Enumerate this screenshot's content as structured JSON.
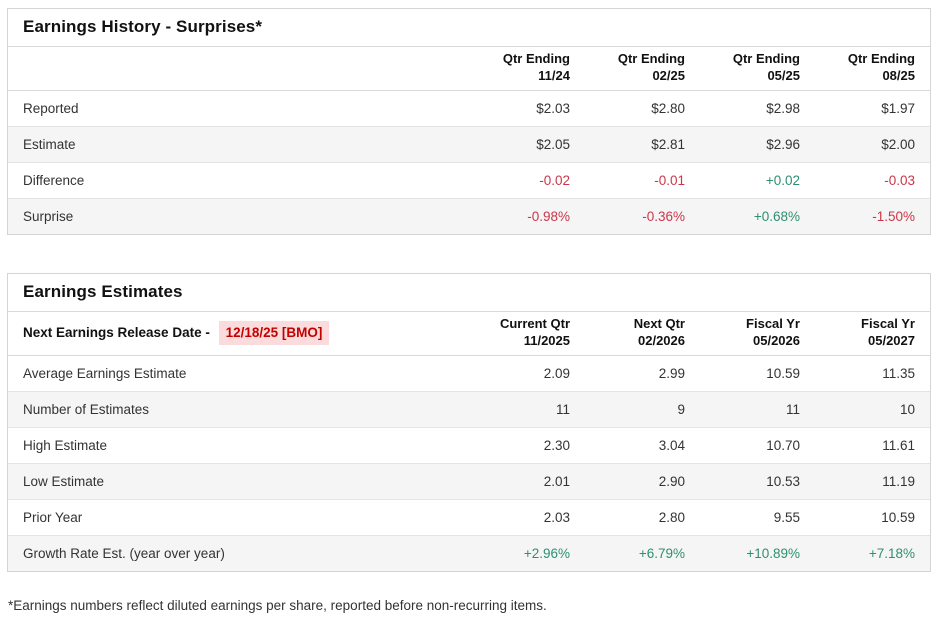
{
  "colors": {
    "negative": "#cb3649",
    "positive": "#2e8f72",
    "release_date_text": "#c40000",
    "release_date_bg": "#fbdbdb"
  },
  "earnings_history": {
    "title": "Earnings History - Surprises*",
    "columns": [
      {
        "line1": "Qtr Ending",
        "line2": "11/24"
      },
      {
        "line1": "Qtr Ending",
        "line2": "02/25"
      },
      {
        "line1": "Qtr Ending",
        "line2": "05/25"
      },
      {
        "line1": "Qtr Ending",
        "line2": "08/25"
      }
    ],
    "rows": [
      {
        "label": "Reported",
        "values": [
          "$2.03",
          "$2.80",
          "$2.98",
          "$1.97"
        ]
      },
      {
        "label": "Estimate",
        "values": [
          "$2.05",
          "$2.81",
          "$2.96",
          "$2.00"
        ]
      },
      {
        "label": "Difference",
        "values": [
          "-0.02",
          "-0.01",
          "+0.02",
          "-0.03"
        ]
      },
      {
        "label": "Surprise",
        "values": [
          "-0.98%",
          "-0.36%",
          "+0.68%",
          "-1.50%"
        ]
      }
    ]
  },
  "earnings_estimates": {
    "title": "Earnings Estimates",
    "release_date_label": "Next Earnings Release Date -",
    "release_date_value": "12/18/25 [BMO]",
    "columns": [
      {
        "line1": "Current Qtr",
        "line2": "11/2025"
      },
      {
        "line1": "Next Qtr",
        "line2": "02/2026"
      },
      {
        "line1": "Fiscal Yr",
        "line2": "05/2026"
      },
      {
        "line1": "Fiscal Yr",
        "line2": "05/2027"
      }
    ],
    "rows": [
      {
        "label": "Average Earnings Estimate",
        "values": [
          "2.09",
          "2.99",
          "10.59",
          "11.35"
        ]
      },
      {
        "label": "Number of Estimates",
        "values": [
          "11",
          "9",
          "11",
          "10"
        ]
      },
      {
        "label": "High Estimate",
        "values": [
          "2.30",
          "3.04",
          "10.70",
          "11.61"
        ]
      },
      {
        "label": "Low Estimate",
        "values": [
          "2.01",
          "2.90",
          "10.53",
          "11.19"
        ]
      },
      {
        "label": "Prior Year",
        "values": [
          "2.03",
          "2.80",
          "9.55",
          "10.59"
        ]
      },
      {
        "label": "Growth Rate Est. (year over year)",
        "values": [
          "+2.96%",
          "+6.79%",
          "+10.89%",
          "+7.18%"
        ]
      }
    ]
  },
  "footnote": "*Earnings numbers reflect diluted earnings per share, reported before non-recurring items."
}
